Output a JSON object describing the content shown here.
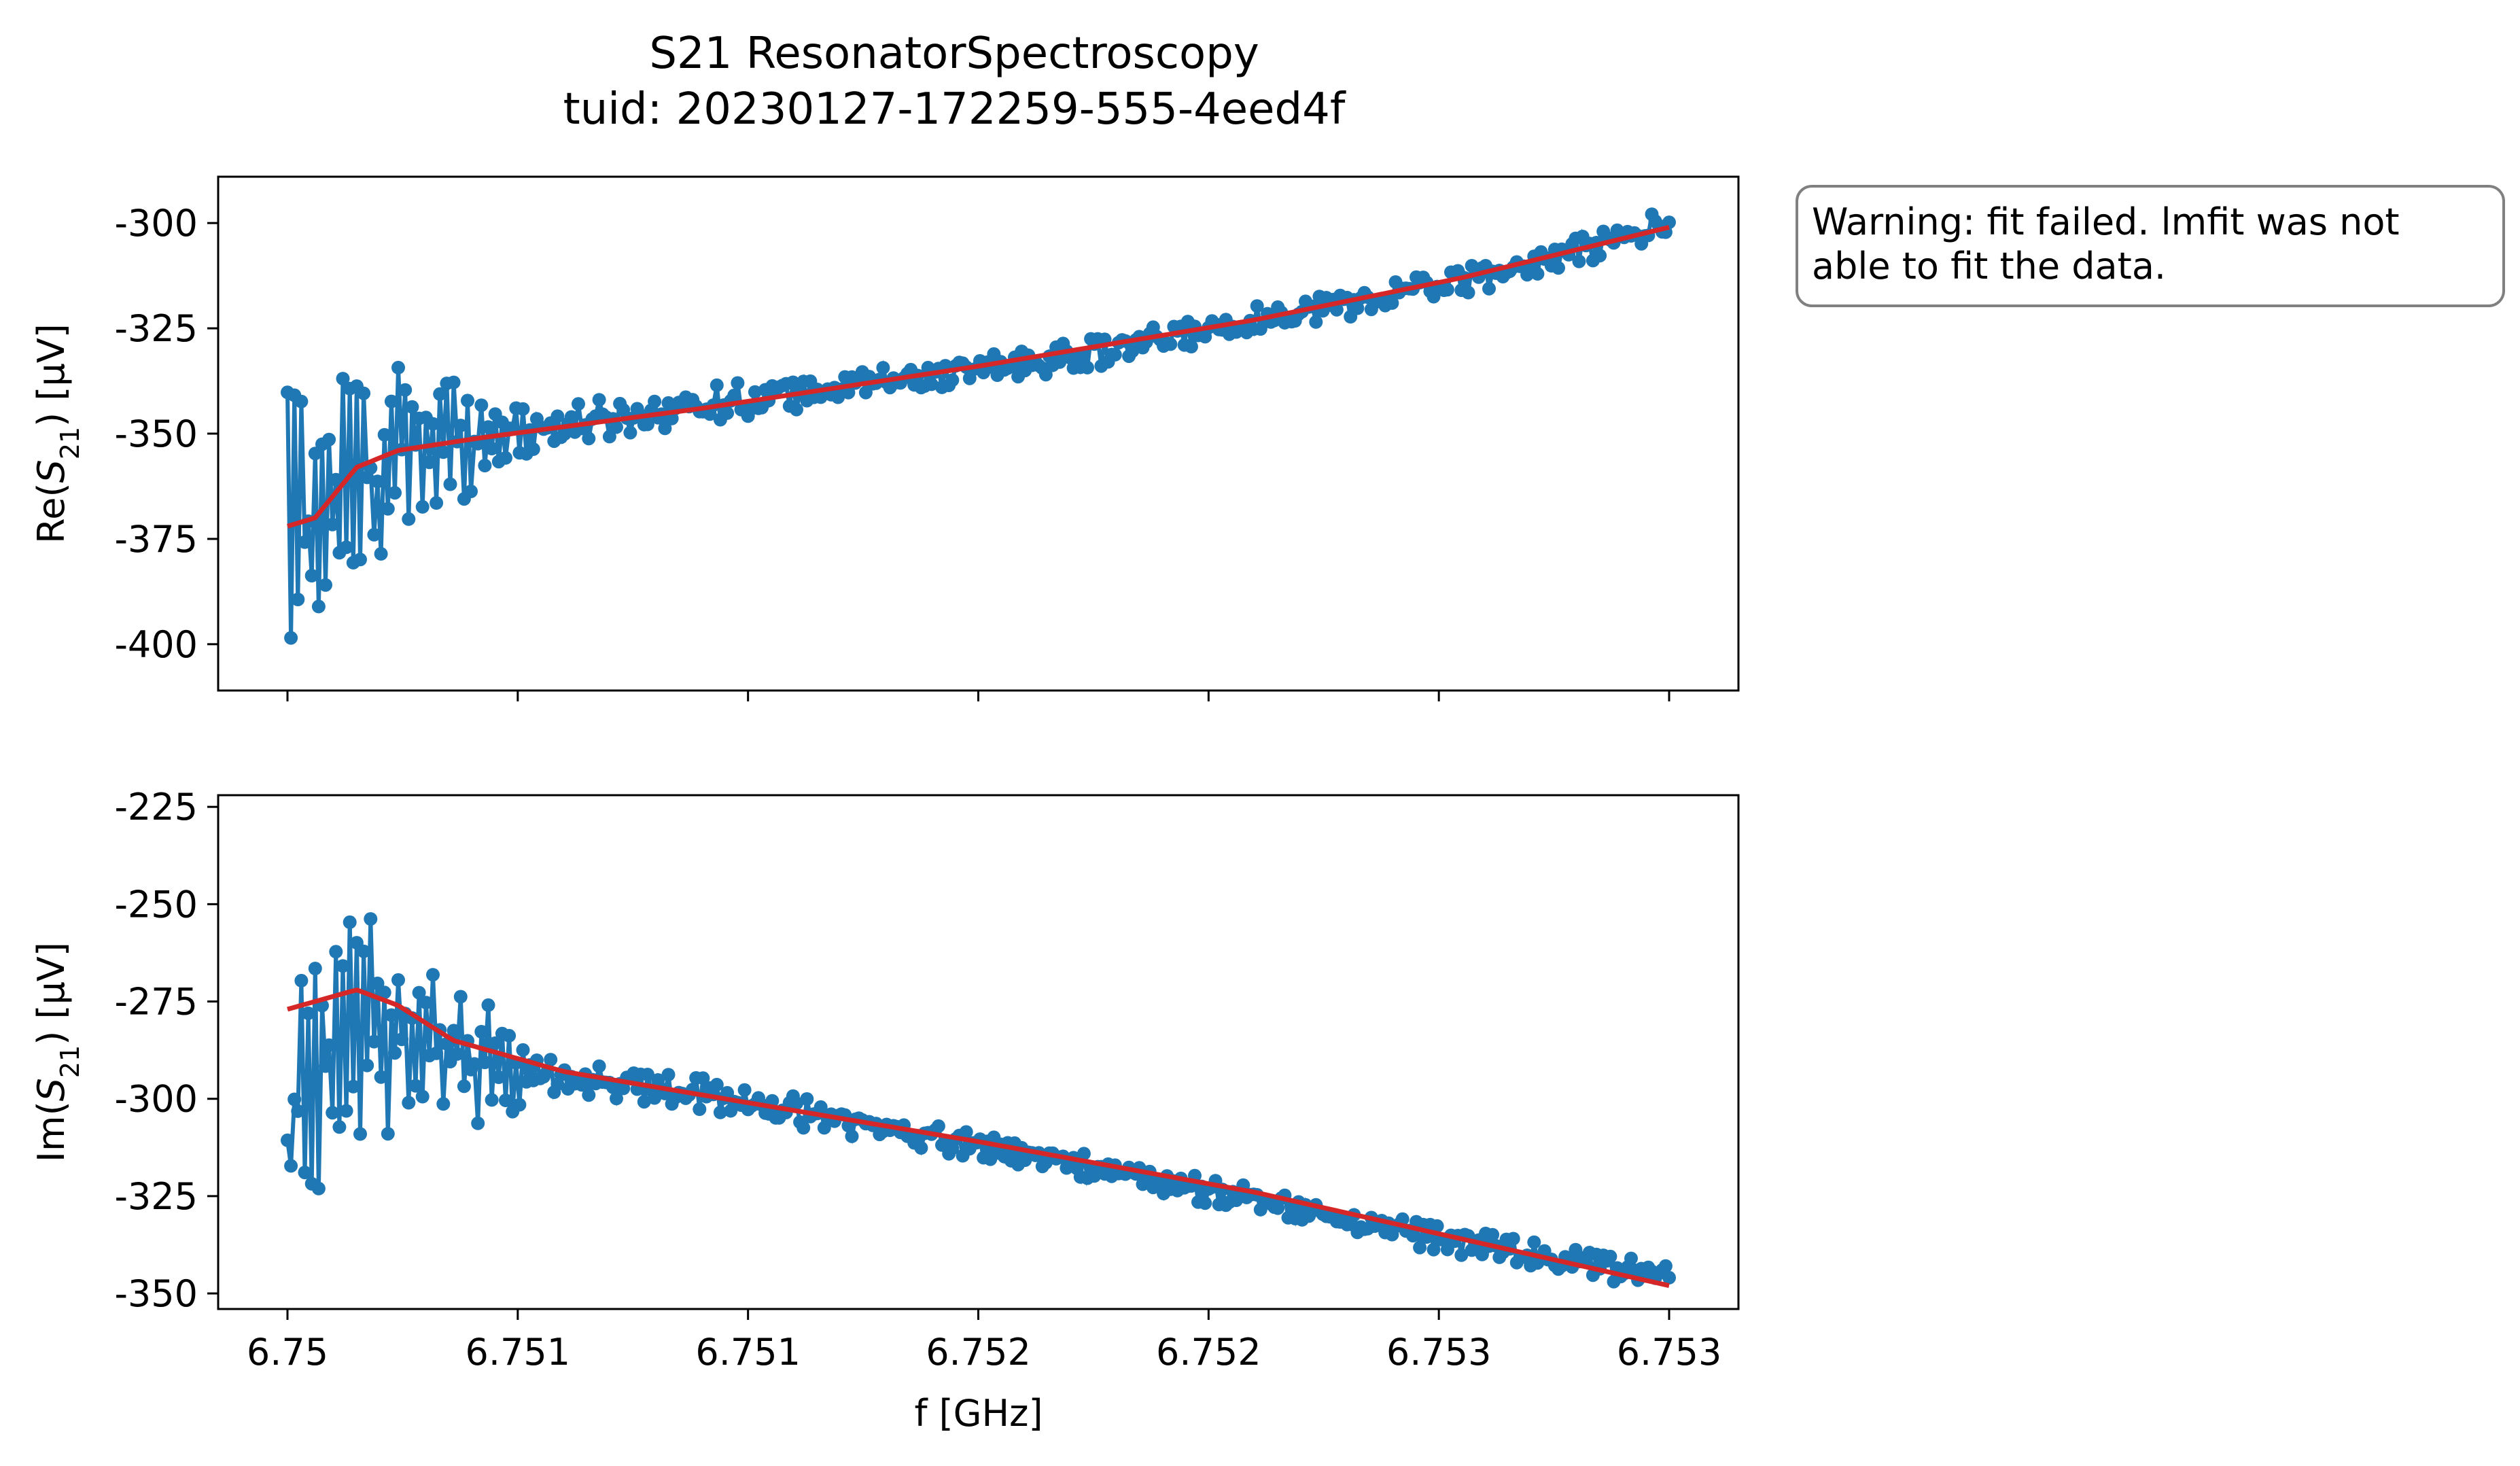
{
  "figure": {
    "title_line1": "S21 ResonatorSpectroscopy",
    "title_line2": "tuid: 20230127-172259-555-4eed4f",
    "warning_line1": "Warning: fit failed. lmfit was not",
    "warning_line2": "able to fit the data.",
    "colors": {
      "data": "#1f77b4",
      "fit": "#d62728",
      "warning_border": "#808080"
    }
  },
  "chart_data": [
    {
      "type": "line",
      "panel": "top",
      "ylabel_prefix": "Re(",
      "ylabel_var": "S",
      "ylabel_sub": "21",
      "ylabel_suffix": ") [µV]",
      "xlim": [
        6.75,
        6.753
      ],
      "ylim": [
        -411,
        -289
      ],
      "xtick_values": [
        6.75,
        6.7505,
        6.751,
        6.7515,
        6.752,
        6.7525,
        6.753
      ],
      "ytick_values": [
        -300,
        -325,
        -350,
        -375,
        -400
      ],
      "ytick_labels": [
        "-300",
        "-325",
        "-350",
        "-375",
        "-400"
      ],
      "grid": false,
      "series": [
        {
          "kind": "data",
          "x_start": 6.75,
          "x_end": 6.753,
          "anchors": [
            [
              0.0,
              -372
            ],
            [
              0.1,
              -352
            ],
            [
              0.2,
              -348
            ],
            [
              0.3,
              -343
            ],
            [
              0.4,
              -339
            ],
            [
              0.5,
              -335
            ],
            [
              0.6,
              -330
            ],
            [
              0.7,
              -323
            ],
            [
              0.8,
              -317
            ],
            [
              0.9,
              -310
            ],
            [
              1.0,
              -300
            ]
          ],
          "noise": [
            [
              0.0,
              30
            ],
            [
              0.12,
              14
            ],
            [
              0.15,
              6
            ],
            [
              0.5,
              4
            ],
            [
              1.0,
              4
            ]
          ],
          "points": 400
        },
        {
          "kind": "fit",
          "x_start": 6.75,
          "x_end": 6.753,
          "anchors": [
            [
              0.0,
              -372
            ],
            [
              0.02,
              -370
            ],
            [
              0.05,
              -358
            ],
            [
              0.08,
              -354
            ],
            [
              0.14,
              -351
            ],
            [
              0.3,
              -344
            ],
            [
              0.5,
              -334
            ],
            [
              0.7,
              -323
            ],
            [
              0.85,
              -313
            ],
            [
              1.0,
              -301
            ]
          ]
        }
      ]
    },
    {
      "type": "line",
      "panel": "bottom",
      "ylabel_prefix": "Im(",
      "ylabel_var": "S",
      "ylabel_sub": "21",
      "ylabel_suffix": ") [µV]",
      "xlabel": "f [GHz]",
      "xlim": [
        6.75,
        6.753
      ],
      "ylim": [
        -354,
        -222
      ],
      "xtick_values": [
        6.75,
        6.7505,
        6.751,
        6.7515,
        6.752,
        6.7525,
        6.753
      ],
      "xtick_labels": [
        "6.75",
        "6.751",
        "6.751",
        "6.752",
        "6.752",
        "6.753",
        "6.753"
      ],
      "ytick_values": [
        -225,
        -250,
        -275,
        -300,
        -325,
        -350
      ],
      "ytick_labels": [
        "-225",
        "-250",
        "-275",
        "-300",
        "-325",
        "-350"
      ],
      "grid": false,
      "series": [
        {
          "kind": "data",
          "x_start": 6.75,
          "x_end": 6.753,
          "anchors": [
            [
              0.0,
              -312
            ],
            [
              0.05,
              -280
            ],
            [
              0.1,
              -285
            ],
            [
              0.15,
              -292
            ],
            [
              0.3,
              -299
            ],
            [
              0.5,
              -312
            ],
            [
              0.7,
              -326
            ],
            [
              0.85,
              -337
            ],
            [
              1.0,
              -346
            ]
          ],
          "noise": [
            [
              0.0,
              32
            ],
            [
              0.15,
              12
            ],
            [
              0.18,
              6
            ],
            [
              0.5,
              4
            ],
            [
              1.0,
              4
            ]
          ],
          "points": 400
        },
        {
          "kind": "fit",
          "x_start": 6.75,
          "x_end": 6.753,
          "anchors": [
            [
              0.0,
              -277
            ],
            [
              0.05,
              -272
            ],
            [
              0.08,
              -276
            ],
            [
              0.12,
              -285
            ],
            [
              0.2,
              -293
            ],
            [
              0.3,
              -299
            ],
            [
              0.5,
              -311
            ],
            [
              0.7,
              -324
            ],
            [
              0.85,
              -336
            ],
            [
              1.0,
              -348
            ]
          ]
        }
      ]
    }
  ]
}
